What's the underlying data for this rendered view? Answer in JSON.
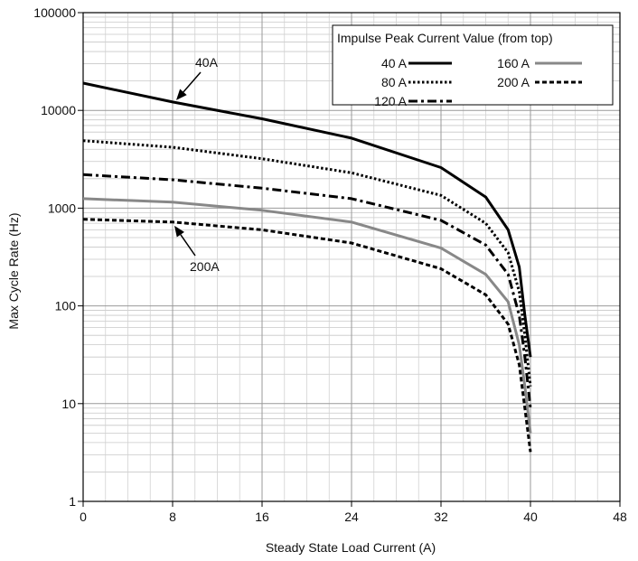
{
  "chart_data": {
    "type": "line",
    "xlabel": "Steady State Load Current (A)",
    "ylabel": "Max Cycle Rate (Hz)",
    "xlim": [
      0,
      48
    ],
    "ylim": [
      1,
      100000
    ],
    "y_scale": "log",
    "grid": true,
    "x_ticks": [
      "0",
      "8",
      "16",
      "24",
      "32",
      "40",
      "48"
    ],
    "y_ticks": [
      "1",
      "10",
      "100",
      "1000",
      "10000",
      "100000"
    ],
    "legend": {
      "title": "Impulse Peak Current Value (from top)",
      "placement": "top-right"
    },
    "series": [
      {
        "name": "40 A",
        "color": "#000000",
        "dash": "solid",
        "x": [
          0,
          8,
          16,
          24,
          32,
          36,
          38,
          39,
          39.5,
          40
        ],
        "y": [
          19000,
          12200,
          8200,
          5200,
          2600,
          1300,
          600,
          250,
          80,
          30
        ]
      },
      {
        "name": "80 A",
        "color": "#000000",
        "dash": "dotted",
        "x": [
          0,
          8,
          16,
          24,
          32,
          36,
          38,
          39,
          39.5,
          40
        ],
        "y": [
          4900,
          4200,
          3200,
          2300,
          1350,
          700,
          350,
          140,
          50,
          15
        ]
      },
      {
        "name": "120 A",
        "color": "#000000",
        "dash": "dashdot",
        "x": [
          0,
          8,
          16,
          24,
          32,
          36,
          38,
          39,
          39.5,
          40
        ],
        "y": [
          2200,
          1950,
          1600,
          1250,
          750,
          420,
          210,
          80,
          30,
          9
        ]
      },
      {
        "name": "160 A",
        "color": "#888888",
        "dash": "solid",
        "x": [
          0,
          8,
          16,
          24,
          32,
          36,
          38,
          39,
          39.5,
          40
        ],
        "y": [
          1250,
          1150,
          950,
          720,
          390,
          210,
          110,
          40,
          15,
          5
        ]
      },
      {
        "name": "200 A",
        "color": "#000000",
        "dash": "dashed",
        "x": [
          0,
          8,
          16,
          24,
          32,
          36,
          38,
          39,
          39.5,
          40
        ],
        "y": [
          770,
          720,
          600,
          440,
          240,
          130,
          65,
          25,
          9,
          3.2
        ]
      }
    ],
    "annotations": [
      {
        "text": "40A",
        "x": 8,
        "y": 12200
      },
      {
        "text": "200A",
        "x": 8,
        "y": 720
      }
    ]
  }
}
